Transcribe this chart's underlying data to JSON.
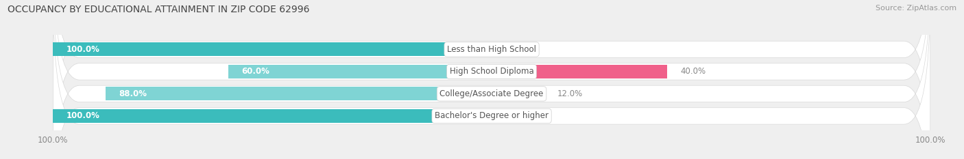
{
  "title": "OCCUPANCY BY EDUCATIONAL ATTAINMENT IN ZIP CODE 62996",
  "source": "Source: ZipAtlas.com",
  "categories": [
    "Less than High School",
    "High School Diploma",
    "College/Associate Degree",
    "Bachelor's Degree or higher"
  ],
  "owner_values": [
    100.0,
    60.0,
    88.0,
    100.0
  ],
  "renter_values": [
    0.0,
    40.0,
    12.0,
    0.0
  ],
  "owner_color_full": "#3bbcbc",
  "owner_color_partial": "#7fd4d4",
  "renter_color_full": "#f0608a",
  "renter_color_partial": "#f7a8c4",
  "background_color": "#efefef",
  "bar_bg_color": "#e8e8e8",
  "title_fontsize": 10,
  "source_fontsize": 8,
  "label_fontsize": 8.5,
  "value_fontsize": 8.5,
  "tick_fontsize": 8.5,
  "owner_label_color": "white",
  "renter_label_color": "#888888",
  "category_label_color": "#555555"
}
